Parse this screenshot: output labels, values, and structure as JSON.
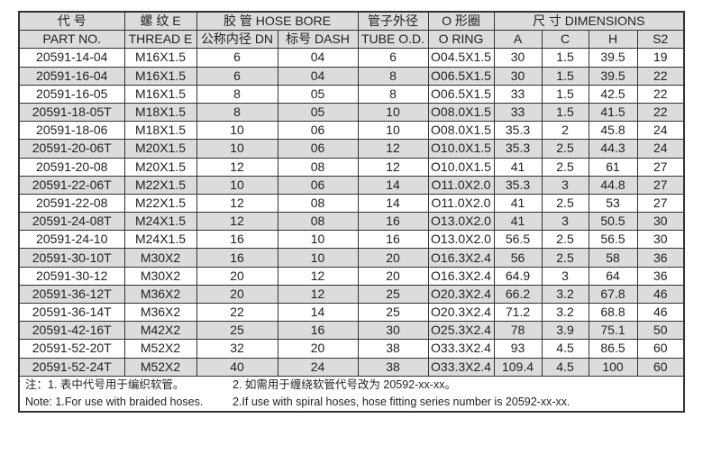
{
  "header": {
    "part_cn": "代 号",
    "part_en": "PART NO.",
    "thread_cn": "螺 纹 E",
    "thread_en": "THREAD E",
    "hose": "胶 管 HOSE BORE",
    "dn": "公称内径 DN",
    "dash": "标号 DASH",
    "tube_cn": "管子外径",
    "tube_en": "TUBE O.D.",
    "oring_cn": "O 形圈",
    "oring_en": "O RING",
    "dims": "尺 寸 DIMENSIONS",
    "a": "A",
    "c": "C",
    "h": "H",
    "s2": "S2"
  },
  "rows": [
    [
      "20591-14-04",
      "M16X1.5",
      "6",
      "04",
      "6",
      "O04.5X1.5",
      "30",
      "1.5",
      "39.5",
      "19"
    ],
    [
      "20591-16-04",
      "M16X1.5",
      "6",
      "04",
      "8",
      "O06.5X1.5",
      "30",
      "1.5",
      "39.5",
      "22"
    ],
    [
      "20591-16-05",
      "M16X1.5",
      "8",
      "05",
      "8",
      "O06.5X1.5",
      "33",
      "1.5",
      "42.5",
      "22"
    ],
    [
      "20591-18-05T",
      "M18X1.5",
      "8",
      "05",
      "10",
      "O08.0X1.5",
      "33",
      "1.5",
      "41.5",
      "22"
    ],
    [
      "20591-18-06",
      "M18X1.5",
      "10",
      "06",
      "10",
      "O08.0X1.5",
      "35.3",
      "2",
      "45.8",
      "24"
    ],
    [
      "20591-20-06T",
      "M20X1.5",
      "10",
      "06",
      "12",
      "O10.0X1.5",
      "35.3",
      "2.5",
      "44.3",
      "24"
    ],
    [
      "20591-20-08",
      "M20X1.5",
      "12",
      "08",
      "12",
      "O10.0X1.5",
      "41",
      "2.5",
      "61",
      "27"
    ],
    [
      "20591-22-06T",
      "M22X1.5",
      "10",
      "06",
      "14",
      "O11.0X2.0",
      "35.3",
      "3",
      "44.8",
      "27"
    ],
    [
      "20591-22-08",
      "M22X1.5",
      "12",
      "08",
      "14",
      "O11.0X2.0",
      "41",
      "2.5",
      "53",
      "27"
    ],
    [
      "20591-24-08T",
      "M24X1.5",
      "12",
      "08",
      "16",
      "O13.0X2.0",
      "41",
      "3",
      "50.5",
      "30"
    ],
    [
      "20591-24-10",
      "M24X1.5",
      "16",
      "10",
      "16",
      "O13.0X2.0",
      "56.5",
      "2.5",
      "56.5",
      "30"
    ],
    [
      "20591-30-10T",
      "M30X2",
      "16",
      "10",
      "20",
      "O16.3X2.4",
      "56",
      "2.5",
      "58",
      "36"
    ],
    [
      "20591-30-12",
      "M30X2",
      "20",
      "12",
      "20",
      "O16.3X2.4",
      "64.9",
      "3",
      "64",
      "36"
    ],
    [
      "20591-36-12T",
      "M36X2",
      "20",
      "12",
      "25",
      "O20.3X2.4",
      "66.2",
      "3.2",
      "67.8",
      "46"
    ],
    [
      "20591-36-14T",
      "M36X2",
      "22",
      "14",
      "25",
      "O20.3X2.4",
      "71.2",
      "3.2",
      "68.8",
      "46"
    ],
    [
      "20591-42-16T",
      "M42X2",
      "25",
      "16",
      "30",
      "O25.3X2.4",
      "78",
      "3.9",
      "75.1",
      "50"
    ],
    [
      "20591-52-20T",
      "M52X2",
      "32",
      "20",
      "38",
      "O33.3X2.4",
      "93",
      "4.5",
      "86.5",
      "60"
    ],
    [
      "20591-52-24T",
      "M52X2",
      "40",
      "24",
      "38",
      "O33.3X2.4",
      "109.4",
      "4.5",
      "100",
      "60"
    ]
  ],
  "notes": {
    "cn1": "注：1. 表中代号用于编织软管。",
    "cn2": "2. 如需用于缠绕软管代号改为 20592-xx-xx。",
    "en1": "Note: 1.For use with braided hoses.",
    "en2": "2.If use with spiral hoses, hose fitting series number is 20592-xx-xx."
  }
}
